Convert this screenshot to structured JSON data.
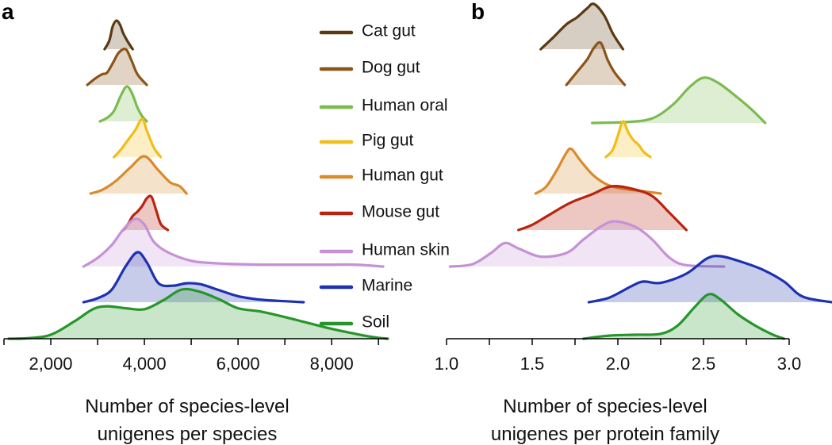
{
  "chart_data": [
    {
      "panel": "a",
      "type": "ridgeline-density",
      "xlabel_lines": [
        "Number of species-level",
        "unigenes per species"
      ],
      "xlim": [
        1000,
        9200
      ],
      "ticks": [
        {
          "value": 2000,
          "label": "2,000"
        },
        {
          "value": 4000,
          "label": "4,000"
        },
        {
          "value": 6000,
          "label": "6,000"
        },
        {
          "value": 8000,
          "label": "8,000"
        }
      ],
      "minor_ticks": [
        1000,
        3000,
        5000,
        7000,
        9000
      ],
      "series": [
        {
          "name": "Cat gut",
          "key": "cat",
          "color": "#5a3a10",
          "scale": 1.0,
          "points": [
            [
              3150,
              0
            ],
            [
              3250,
              0.3
            ],
            [
              3320,
              0.78
            ],
            [
              3400,
              1.0
            ],
            [
              3480,
              0.85
            ],
            [
              3550,
              0.55
            ],
            [
              3650,
              0.25
            ],
            [
              3750,
              0
            ]
          ]
        },
        {
          "name": "Dog gut",
          "key": "dog",
          "color": "#8b5519",
          "scale": 1.0,
          "points": [
            [
              2780,
              0
            ],
            [
              2950,
              0.18
            ],
            [
              3100,
              0.3
            ],
            [
              3200,
              0.34
            ],
            [
              3330,
              0.62
            ],
            [
              3450,
              0.9
            ],
            [
              3600,
              1.0
            ],
            [
              3720,
              0.7
            ],
            [
              3850,
              0.3
            ],
            [
              4050,
              0
            ]
          ]
        },
        {
          "name": "Human oral",
          "key": "oral",
          "color": "#7cbb4e",
          "scale": 1.0,
          "points": [
            [
              3050,
              0
            ],
            [
              3200,
              0.1
            ],
            [
              3350,
              0.3
            ],
            [
              3500,
              0.75
            ],
            [
              3620,
              1.0
            ],
            [
              3730,
              0.82
            ],
            [
              3850,
              0.4
            ],
            [
              3950,
              0.15
            ],
            [
              4050,
              0
            ]
          ]
        },
        {
          "name": "Pig gut",
          "key": "pig",
          "color": "#f2bd17",
          "scale": 1.0,
          "points": [
            [
              3350,
              0
            ],
            [
              3500,
              0.2
            ],
            [
              3650,
              0.45
            ],
            [
              3800,
              0.7
            ],
            [
              3950,
              1.0
            ],
            [
              4050,
              0.7
            ],
            [
              4200,
              0.25
            ],
            [
              4350,
              0
            ]
          ]
        },
        {
          "name": "Human gut",
          "key": "humangut",
          "color": "#d98a2c",
          "scale": 1.0,
          "points": [
            [
              2850,
              0
            ],
            [
              3100,
              0.1
            ],
            [
              3400,
              0.35
            ],
            [
              3700,
              0.7
            ],
            [
              4000,
              1.0
            ],
            [
              4300,
              0.62
            ],
            [
              4550,
              0.3
            ],
            [
              4750,
              0.2
            ],
            [
              4900,
              0
            ]
          ]
        },
        {
          "name": "Mouse gut",
          "key": "mouse",
          "color": "#b8250f",
          "scale": 1.0,
          "points": [
            [
              3550,
              0
            ],
            [
              3650,
              0.18
            ],
            [
              3750,
              0.42
            ],
            [
              3850,
              0.55
            ],
            [
              3950,
              0.72
            ],
            [
              4050,
              0.95
            ],
            [
              4150,
              1.0
            ],
            [
              4250,
              0.6
            ],
            [
              4350,
              0.18
            ],
            [
              4500,
              0
            ]
          ]
        },
        {
          "name": "Human skin",
          "key": "skin",
          "color": "#c592d6",
          "scale": 1.0,
          "points": [
            [
              2700,
              0
            ],
            [
              3000,
              0.18
            ],
            [
              3300,
              0.45
            ],
            [
              3550,
              0.78
            ],
            [
              3800,
              1.0
            ],
            [
              4000,
              0.88
            ],
            [
              4200,
              0.52
            ],
            [
              4500,
              0.3
            ],
            [
              5000,
              0.12
            ],
            [
              5500,
              0.07
            ],
            [
              6000,
              0.05
            ],
            [
              6500,
              0.04
            ],
            [
              7000,
              0.04
            ],
            [
              7500,
              0.04
            ],
            [
              8000,
              0.04
            ],
            [
              8500,
              0.04
            ],
            [
              9100,
              0
            ]
          ]
        },
        {
          "name": "Marine",
          "key": "marine",
          "color": "#1e32b0",
          "scale": 1.0,
          "points": [
            [
              2700,
              0
            ],
            [
              3000,
              0.08
            ],
            [
              3300,
              0.25
            ],
            [
              3600,
              0.72
            ],
            [
              3850,
              1.0
            ],
            [
              4050,
              0.8
            ],
            [
              4300,
              0.38
            ],
            [
              4600,
              0.33
            ],
            [
              4900,
              0.38
            ],
            [
              5200,
              0.36
            ],
            [
              5600,
              0.24
            ],
            [
              6000,
              0.12
            ],
            [
              6500,
              0.05
            ],
            [
              7000,
              0.02
            ],
            [
              7400,
              0
            ]
          ]
        },
        {
          "name": "Soil",
          "key": "soil",
          "color": "#26962a",
          "scale": 1.0,
          "points": [
            [
              1100,
              0
            ],
            [
              1500,
              0.01
            ],
            [
              2000,
              0.08
            ],
            [
              2500,
              0.35
            ],
            [
              2900,
              0.6
            ],
            [
              3200,
              0.66
            ],
            [
              3600,
              0.62
            ],
            [
              4000,
              0.6
            ],
            [
              4400,
              0.78
            ],
            [
              4800,
              1.0
            ],
            [
              5200,
              0.95
            ],
            [
              5600,
              0.8
            ],
            [
              6000,
              0.62
            ],
            [
              6500,
              0.55
            ],
            [
              7000,
              0.44
            ],
            [
              7500,
              0.32
            ],
            [
              8000,
              0.2
            ],
            [
              8500,
              0.1
            ],
            [
              8900,
              0.03
            ],
            [
              9200,
              0
            ]
          ]
        }
      ]
    },
    {
      "panel": "b",
      "type": "ridgeline-density",
      "xlabel_lines": [
        "Number of species-level",
        "unigenes per protein family"
      ],
      "xlim": [
        1.0,
        3.0
      ],
      "ticks": [
        {
          "value": 1.0,
          "label": "1.0"
        },
        {
          "value": 1.5,
          "label": "1.5"
        },
        {
          "value": 2.0,
          "label": "2.0"
        },
        {
          "value": 2.5,
          "label": "2.5"
        },
        {
          "value": 3.0,
          "label": "3.0"
        }
      ],
      "minor_ticks": [
        1.25,
        1.75,
        2.25,
        2.75
      ],
      "series": [
        {
          "name": "Cat gut",
          "key": "cat",
          "color": "#5a3a10",
          "scale": 1.0,
          "points": [
            [
              1.55,
              0
            ],
            [
              1.62,
              0.25
            ],
            [
              1.7,
              0.55
            ],
            [
              1.76,
              0.7
            ],
            [
              1.82,
              0.9
            ],
            [
              1.86,
              1.0
            ],
            [
              1.92,
              0.75
            ],
            [
              1.97,
              0.35
            ],
            [
              2.03,
              0
            ]
          ]
        },
        {
          "name": "Dog gut",
          "key": "dog",
          "color": "#8b5519",
          "scale": 1.0,
          "points": [
            [
              1.7,
              0
            ],
            [
              1.76,
              0.3
            ],
            [
              1.82,
              0.6
            ],
            [
              1.86,
              0.88
            ],
            [
              1.9,
              1.0
            ],
            [
              1.94,
              0.6
            ],
            [
              1.98,
              0.3
            ],
            [
              2.04,
              0
            ]
          ]
        },
        {
          "name": "Human oral",
          "key": "oral",
          "color": "#7cbb4e",
          "scale": 1.0,
          "points": [
            [
              1.85,
              0
            ],
            [
              2.05,
              0.02
            ],
            [
              2.2,
              0.1
            ],
            [
              2.32,
              0.4
            ],
            [
              2.42,
              0.8
            ],
            [
              2.5,
              1.0
            ],
            [
              2.58,
              0.9
            ],
            [
              2.68,
              0.62
            ],
            [
              2.78,
              0.3
            ],
            [
              2.86,
              0
            ]
          ]
        },
        {
          "name": "Pig gut",
          "key": "pig",
          "color": "#f2bd17",
          "scale": 1.0,
          "points": [
            [
              1.93,
              0
            ],
            [
              1.97,
              0.2
            ],
            [
              2.0,
              0.6
            ],
            [
              2.03,
              1.0
            ],
            [
              2.06,
              0.7
            ],
            [
              2.09,
              0.48
            ],
            [
              2.12,
              0.35
            ],
            [
              2.15,
              0.15
            ],
            [
              2.19,
              0
            ]
          ]
        },
        {
          "name": "Human gut",
          "key": "humangut",
          "color": "#d98a2c",
          "scale": 1.0,
          "points": [
            [
              1.52,
              0
            ],
            [
              1.58,
              0.15
            ],
            [
              1.64,
              0.5
            ],
            [
              1.7,
              0.92
            ],
            [
              1.73,
              1.0
            ],
            [
              1.78,
              0.75
            ],
            [
              1.86,
              0.4
            ],
            [
              1.95,
              0.18
            ],
            [
              2.05,
              0.1
            ],
            [
              2.15,
              0.05
            ],
            [
              2.25,
              0
            ]
          ]
        },
        {
          "name": "Mouse gut",
          "key": "mouse",
          "color": "#b8250f",
          "scale": 1.0,
          "points": [
            [
              1.42,
              0
            ],
            [
              1.5,
              0.12
            ],
            [
              1.6,
              0.35
            ],
            [
              1.72,
              0.62
            ],
            [
              1.85,
              0.82
            ],
            [
              1.96,
              1.0
            ],
            [
              2.08,
              0.95
            ],
            [
              2.2,
              0.78
            ],
            [
              2.3,
              0.4
            ],
            [
              2.4,
              0
            ]
          ]
        },
        {
          "name": "Human skin",
          "key": "skin",
          "color": "#c592d6",
          "scale": 1.0,
          "points": [
            [
              1.02,
              0
            ],
            [
              1.15,
              0.05
            ],
            [
              1.26,
              0.3
            ],
            [
              1.34,
              0.52
            ],
            [
              1.42,
              0.4
            ],
            [
              1.55,
              0.22
            ],
            [
              1.7,
              0.3
            ],
            [
              1.8,
              0.6
            ],
            [
              1.9,
              0.88
            ],
            [
              1.98,
              1.0
            ],
            [
              2.1,
              0.88
            ],
            [
              2.2,
              0.6
            ],
            [
              2.3,
              0.2
            ],
            [
              2.4,
              0.03
            ],
            [
              2.62,
              0
            ]
          ]
        },
        {
          "name": "Marine",
          "key": "marine",
          "color": "#1e32b0",
          "scale": 1.0,
          "points": [
            [
              1.83,
              0
            ],
            [
              1.95,
              0.1
            ],
            [
              2.08,
              0.35
            ],
            [
              2.15,
              0.45
            ],
            [
              2.25,
              0.42
            ],
            [
              2.4,
              0.62
            ],
            [
              2.52,
              0.95
            ],
            [
              2.6,
              1.0
            ],
            [
              2.72,
              0.88
            ],
            [
              2.85,
              0.7
            ],
            [
              2.97,
              0.45
            ],
            [
              3.08,
              0.12
            ],
            [
              3.25,
              0
            ]
          ]
        },
        {
          "name": "Soil",
          "key": "soil",
          "color": "#26962a",
          "scale": 1.0,
          "points": [
            [
              1.8,
              0
            ],
            [
              1.95,
              0.07
            ],
            [
              2.1,
              0.09
            ],
            [
              2.25,
              0.11
            ],
            [
              2.35,
              0.3
            ],
            [
              2.45,
              0.72
            ],
            [
              2.53,
              1.0
            ],
            [
              2.6,
              0.88
            ],
            [
              2.7,
              0.55
            ],
            [
              2.8,
              0.3
            ],
            [
              2.9,
              0.1
            ],
            [
              2.97,
              0
            ]
          ]
        }
      ]
    }
  ],
  "panel_labels": {
    "a": "a",
    "b": "b"
  },
  "legend": [
    {
      "name": "Cat gut",
      "color": "#5a3a10"
    },
    {
      "name": "Dog gut",
      "color": "#8b5519"
    },
    {
      "name": "Human oral",
      "color": "#7cbb4e"
    },
    {
      "name": "Pig gut",
      "color": "#f2bd17"
    },
    {
      "name": "Human gut",
      "color": "#d98a2c"
    },
    {
      "name": "Mouse gut",
      "color": "#b8250f"
    },
    {
      "name": "Human skin",
      "color": "#c592d6"
    },
    {
      "name": "Marine",
      "color": "#1e32b0"
    },
    {
      "name": "Soil",
      "color": "#26962a"
    }
  ]
}
